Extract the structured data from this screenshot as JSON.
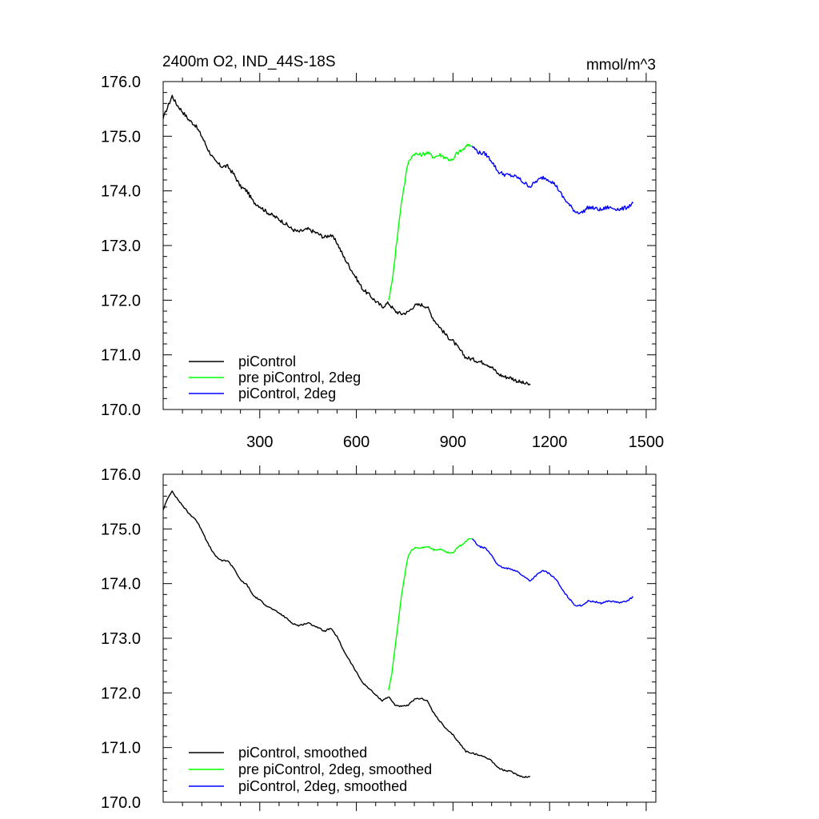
{
  "header": {
    "title": "2400m O2, IND_44S-18S",
    "units": "mmol/m^3"
  },
  "colors": {
    "black": "#000000",
    "green": "#00ff00",
    "blue": "#0000ff"
  },
  "chart_data": [
    {
      "type": "line",
      "title": "2400m O2, IND_44S-18S",
      "ylabel": "mmol/m^3",
      "xlabel": "",
      "xlim": [
        0,
        1530
      ],
      "ylim": [
        170.0,
        176.0
      ],
      "xticks": [
        300,
        600,
        900,
        1200,
        1500
      ],
      "xtick_labels": [
        "300",
        "600",
        "900",
        "1200",
        "1500"
      ],
      "yticks": [
        170,
        171,
        172,
        173,
        174,
        175,
        176
      ],
      "ytick_labels": [
        "170.0",
        "171.0",
        "172.0",
        "173.0",
        "174.0",
        "175.0",
        "176.0"
      ],
      "legend_position": "bottom-left",
      "series": [
        {
          "name": "piControl",
          "color": "#000000",
          "points": [
            [
              0,
              175.32
            ],
            [
              10,
              175.48
            ],
            [
              20,
              175.62
            ],
            [
              28,
              175.74
            ],
            [
              40,
              175.6
            ],
            [
              60,
              175.45
            ],
            [
              80,
              175.3
            ],
            [
              100,
              175.2
            ],
            [
              120,
              175.0
            ],
            [
              140,
              174.75
            ],
            [
              160,
              174.55
            ],
            [
              180,
              174.45
            ],
            [
              200,
              174.45
            ],
            [
              220,
              174.3
            ],
            [
              240,
              174.08
            ],
            [
              260,
              174.0
            ],
            [
              280,
              173.8
            ],
            [
              300,
              173.72
            ],
            [
              320,
              173.62
            ],
            [
              340,
              173.55
            ],
            [
              360,
              173.48
            ],
            [
              380,
              173.4
            ],
            [
              400,
              173.3
            ],
            [
              420,
              173.25
            ],
            [
              450,
              173.3
            ],
            [
              480,
              173.22
            ],
            [
              500,
              173.15
            ],
            [
              520,
              173.2
            ],
            [
              540,
              173.05
            ],
            [
              560,
              172.8
            ],
            [
              580,
              172.6
            ],
            [
              600,
              172.4
            ],
            [
              620,
              172.2
            ],
            [
              640,
              172.1
            ],
            [
              660,
              171.98
            ],
            [
              680,
              171.88
            ],
            [
              700,
              171.95
            ],
            [
              720,
              171.8
            ],
            [
              740,
              171.75
            ],
            [
              760,
              171.78
            ],
            [
              780,
              171.9
            ],
            [
              800,
              171.92
            ],
            [
              820,
              171.88
            ],
            [
              840,
              171.65
            ],
            [
              860,
              171.5
            ],
            [
              880,
              171.35
            ],
            [
              900,
              171.25
            ],
            [
              920,
              171.1
            ],
            [
              940,
              170.95
            ],
            [
              960,
              170.92
            ],
            [
              980,
              170.88
            ],
            [
              1000,
              170.85
            ],
            [
              1020,
              170.78
            ],
            [
              1040,
              170.65
            ],
            [
              1060,
              170.6
            ],
            [
              1080,
              170.58
            ],
            [
              1100,
              170.52
            ],
            [
              1120,
              170.48
            ],
            [
              1140,
              170.45
            ]
          ]
        },
        {
          "name": "pre piControl, 2deg",
          "color": "#00ff00",
          "points": [
            [
              700,
              172.0
            ],
            [
              710,
              172.3
            ],
            [
              720,
              172.8
            ],
            [
              730,
              173.3
            ],
            [
              740,
              173.8
            ],
            [
              750,
              174.15
            ],
            [
              760,
              174.5
            ],
            [
              770,
              174.62
            ],
            [
              780,
              174.68
            ],
            [
              800,
              174.66
            ],
            [
              820,
              174.7
            ],
            [
              840,
              174.62
            ],
            [
              860,
              174.66
            ],
            [
              880,
              174.6
            ],
            [
              900,
              174.55
            ],
            [
              910,
              174.68
            ],
            [
              930,
              174.75
            ],
            [
              950,
              174.85
            ],
            [
              960,
              174.82
            ]
          ]
        },
        {
          "name": "piControl, 2deg",
          "color": "#0000ff",
          "points": [
            [
              960,
              174.82
            ],
            [
              980,
              174.7
            ],
            [
              1000,
              174.68
            ],
            [
              1020,
              174.55
            ],
            [
              1040,
              174.35
            ],
            [
              1060,
              174.3
            ],
            [
              1080,
              174.28
            ],
            [
              1100,
              174.25
            ],
            [
              1120,
              174.15
            ],
            [
              1140,
              174.08
            ],
            [
              1160,
              174.18
            ],
            [
              1180,
              174.25
            ],
            [
              1200,
              174.2
            ],
            [
              1220,
              174.1
            ],
            [
              1240,
              173.9
            ],
            [
              1260,
              173.75
            ],
            [
              1280,
              173.62
            ],
            [
              1300,
              173.6
            ],
            [
              1320,
              173.7
            ],
            [
              1340,
              173.68
            ],
            [
              1360,
              173.65
            ],
            [
              1380,
              173.7
            ],
            [
              1400,
              173.68
            ],
            [
              1420,
              173.66
            ],
            [
              1440,
              173.7
            ],
            [
              1460,
              173.78
            ]
          ]
        }
      ]
    },
    {
      "type": "line",
      "title": "",
      "ylabel": "",
      "xlabel": "",
      "xlim": [
        0,
        1530
      ],
      "ylim": [
        170.0,
        176.0
      ],
      "xticks": [
        300,
        600,
        900,
        1200,
        1500
      ],
      "xtick_labels": [],
      "yticks": [
        170,
        171,
        172,
        173,
        174,
        175,
        176
      ],
      "ytick_labels": [
        "170.0",
        "171.0",
        "172.0",
        "173.0",
        "174.0",
        "175.0",
        "176.0"
      ],
      "legend_position": "bottom-left",
      "series": [
        {
          "name": "piControl, smoothed",
          "color": "#000000",
          "points": [
            [
              0,
              175.35
            ],
            [
              10,
              175.5
            ],
            [
              20,
              175.62
            ],
            [
              28,
              175.7
            ],
            [
              40,
              175.58
            ],
            [
              60,
              175.43
            ],
            [
              80,
              175.28
            ],
            [
              100,
              175.18
            ],
            [
              120,
              174.98
            ],
            [
              140,
              174.72
            ],
            [
              160,
              174.52
            ],
            [
              180,
              174.42
            ],
            [
              200,
              174.42
            ],
            [
              220,
              174.28
            ],
            [
              240,
              174.06
            ],
            [
              260,
              173.98
            ],
            [
              280,
              173.78
            ],
            [
              300,
              173.7
            ],
            [
              320,
              173.6
            ],
            [
              340,
              173.53
            ],
            [
              360,
              173.46
            ],
            [
              380,
              173.38
            ],
            [
              400,
              173.28
            ],
            [
              420,
              173.23
            ],
            [
              450,
              173.28
            ],
            [
              480,
              173.2
            ],
            [
              500,
              173.13
            ],
            [
              520,
              173.18
            ],
            [
              540,
              173.03
            ],
            [
              560,
              172.78
            ],
            [
              580,
              172.58
            ],
            [
              600,
              172.38
            ],
            [
              620,
              172.18
            ],
            [
              640,
              172.08
            ],
            [
              660,
              171.96
            ],
            [
              680,
              171.86
            ],
            [
              700,
              171.93
            ],
            [
              720,
              171.78
            ],
            [
              740,
              171.75
            ],
            [
              760,
              171.77
            ],
            [
              780,
              171.88
            ],
            [
              800,
              171.9
            ],
            [
              820,
              171.86
            ],
            [
              840,
              171.63
            ],
            [
              860,
              171.48
            ],
            [
              880,
              171.33
            ],
            [
              900,
              171.23
            ],
            [
              920,
              171.08
            ],
            [
              940,
              170.93
            ],
            [
              960,
              170.9
            ],
            [
              980,
              170.86
            ],
            [
              1000,
              170.83
            ],
            [
              1020,
              170.76
            ],
            [
              1040,
              170.63
            ],
            [
              1060,
              170.58
            ],
            [
              1080,
              170.56
            ],
            [
              1100,
              170.5
            ],
            [
              1120,
              170.46
            ],
            [
              1140,
              170.47
            ]
          ]
        },
        {
          "name": "pre piControl, 2deg, smoothed",
          "color": "#00ff00",
          "points": [
            [
              700,
              172.05
            ],
            [
              710,
              172.35
            ],
            [
              720,
              172.82
            ],
            [
              730,
              173.3
            ],
            [
              740,
              173.78
            ],
            [
              750,
              174.15
            ],
            [
              760,
              174.48
            ],
            [
              770,
              174.6
            ],
            [
              780,
              174.65
            ],
            [
              800,
              174.65
            ],
            [
              820,
              174.68
            ],
            [
              840,
              174.62
            ],
            [
              860,
              174.63
            ],
            [
              880,
              174.58
            ],
            [
              900,
              174.55
            ],
            [
              910,
              174.65
            ],
            [
              930,
              174.72
            ],
            [
              950,
              174.82
            ],
            [
              960,
              174.82
            ]
          ]
        },
        {
          "name": "piControl, 2deg, smoothed",
          "color": "#0000ff",
          "points": [
            [
              960,
              174.82
            ],
            [
              980,
              174.68
            ],
            [
              1000,
              174.65
            ],
            [
              1020,
              174.52
            ],
            [
              1040,
              174.33
            ],
            [
              1060,
              174.28
            ],
            [
              1080,
              174.27
            ],
            [
              1100,
              174.22
            ],
            [
              1120,
              174.13
            ],
            [
              1140,
              174.05
            ],
            [
              1160,
              174.16
            ],
            [
              1180,
              174.24
            ],
            [
              1200,
              174.18
            ],
            [
              1220,
              174.08
            ],
            [
              1240,
              173.88
            ],
            [
              1260,
              173.73
            ],
            [
              1280,
              173.6
            ],
            [
              1300,
              173.6
            ],
            [
              1320,
              173.68
            ],
            [
              1340,
              173.67
            ],
            [
              1360,
              173.64
            ],
            [
              1380,
              173.68
            ],
            [
              1400,
              173.67
            ],
            [
              1420,
              173.65
            ],
            [
              1440,
              173.68
            ],
            [
              1460,
              173.76
            ]
          ]
        }
      ]
    }
  ]
}
